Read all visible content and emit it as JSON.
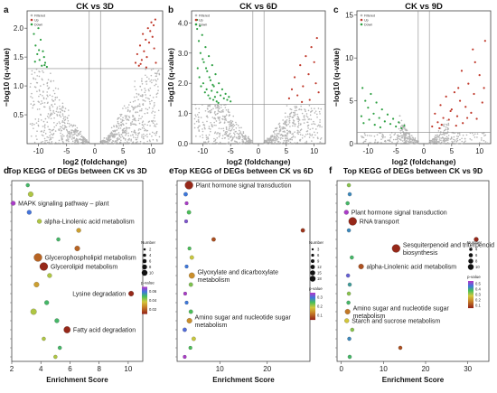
{
  "chart_data": [
    {
      "id": "a",
      "letter": "a",
      "type": "scatter",
      "title": "CK vs 3D",
      "xlabel": "log2  (foldchange)",
      "ylabel": "−log10  (q-value)",
      "xlim": [
        -12,
        12
      ],
      "ylim": [
        0,
        2.3
      ],
      "xticks": [
        -10,
        -5,
        0,
        5,
        10
      ],
      "yticks": [
        0.5,
        1.0,
        1.5,
        2.0
      ],
      "threshold_y": 1.3,
      "threshold_x": [
        -1,
        1
      ],
      "legend": [
        "Filtered",
        "Up",
        "Down"
      ],
      "up_points": [
        [
          7.2,
          1.4
        ],
        [
          7.5,
          1.55
        ],
        [
          7.8,
          1.35
        ],
        [
          8.0,
          1.7
        ],
        [
          8.3,
          1.45
        ],
        [
          8.5,
          1.9
        ],
        [
          8.7,
          1.6
        ],
        [
          9.0,
          1.8
        ],
        [
          9.2,
          1.5
        ],
        [
          9.4,
          2.0
        ],
        [
          9.6,
          1.75
        ],
        [
          9.8,
          1.95
        ],
        [
          10.0,
          2.1
        ],
        [
          10.2,
          1.85
        ],
        [
          10.4,
          2.05
        ],
        [
          10.5,
          1.65
        ],
        [
          10.7,
          2.15
        ],
        [
          10.8,
          1.4
        ],
        [
          9.1,
          1.32
        ],
        [
          8.1,
          1.38
        ]
      ],
      "down_points": [
        [
          -10.8,
          1.9
        ],
        [
          -10.5,
          1.7
        ],
        [
          -10.2,
          1.55
        ],
        [
          -10.0,
          2.0
        ],
        [
          -9.8,
          1.45
        ],
        [
          -9.6,
          1.8
        ],
        [
          -9.4,
          1.35
        ],
        [
          -9.2,
          1.6
        ],
        [
          -9.0,
          1.5
        ],
        [
          -8.8,
          1.4
        ],
        [
          -8.5,
          1.33
        ],
        [
          -10.6,
          1.42
        ],
        [
          -9.9,
          1.62
        ],
        [
          -8.9,
          1.36
        ]
      ]
    },
    {
      "id": "b",
      "letter": "b",
      "type": "scatter",
      "title": "CK vs 6D",
      "xlabel": "log2  (foldchange)",
      "ylabel": "−log10  (q-value)",
      "xlim": [
        -12,
        12
      ],
      "ylim": [
        0,
        4.4
      ],
      "xticks": [
        -10,
        -5,
        0,
        5,
        10
      ],
      "yticks": [
        0.0,
        1.0,
        2.0,
        3.0,
        4.0
      ],
      "threshold_y": 1.3,
      "threshold_x": [
        -1,
        1
      ],
      "legend": [
        "Filtered",
        "Up",
        "Down"
      ],
      "up_points": [
        [
          5.5,
          1.5
        ],
        [
          6.0,
          1.8
        ],
        [
          6.5,
          2.2
        ],
        [
          7.0,
          1.6
        ],
        [
          7.5,
          2.6
        ],
        [
          8.0,
          1.9
        ],
        [
          8.5,
          2.9
        ],
        [
          9.0,
          2.3
        ],
        [
          9.5,
          3.2
        ],
        [
          10.0,
          2.7
        ],
        [
          10.5,
          3.5
        ],
        [
          10.8,
          1.7
        ],
        [
          9.2,
          1.45
        ],
        [
          7.8,
          1.38
        ],
        [
          10.3,
          2.0
        ]
      ],
      "down_points": [
        [
          -11.0,
          3.8
        ],
        [
          -10.7,
          3.4
        ],
        [
          -10.4,
          3.0
        ],
        [
          -10.1,
          3.6
        ],
        [
          -9.8,
          2.7
        ],
        [
          -9.5,
          3.2
        ],
        [
          -9.2,
          2.4
        ],
        [
          -8.9,
          2.9
        ],
        [
          -8.6,
          2.1
        ],
        [
          -8.3,
          2.6
        ],
        [
          -8.0,
          1.9
        ],
        [
          -7.7,
          2.3
        ],
        [
          -7.4,
          1.7
        ],
        [
          -7.1,
          2.0
        ],
        [
          -6.8,
          1.6
        ],
        [
          -6.5,
          1.8
        ],
        [
          -6.2,
          1.5
        ],
        [
          -5.9,
          1.65
        ],
        [
          -5.6,
          1.45
        ],
        [
          -5.3,
          1.55
        ],
        [
          -5.0,
          1.4
        ],
        [
          -10.9,
          2.5
        ],
        [
          -10.6,
          2.2
        ],
        [
          -10.3,
          1.9
        ],
        [
          -9.9,
          2.0
        ],
        [
          -9.6,
          1.7
        ],
        [
          -9.3,
          1.8
        ],
        [
          -9.0,
          1.6
        ],
        [
          -8.7,
          1.5
        ],
        [
          -8.4,
          1.75
        ],
        [
          -8.1,
          1.45
        ],
        [
          -7.8,
          1.55
        ],
        [
          -7.5,
          1.4
        ],
        [
          -7.2,
          1.35
        ],
        [
          -11.0,
          4.1
        ],
        [
          -10.5,
          3.9
        ],
        [
          -10.0,
          2.8
        ],
        [
          -9.4,
          2.5
        ],
        [
          -8.8,
          2.2
        ],
        [
          -8.2,
          1.95
        ]
      ]
    },
    {
      "id": "c",
      "letter": "c",
      "type": "scatter",
      "title": "CK vs 9D",
      "xlabel": "log2  (foldchange)",
      "ylabel": "−log10  (q-value)",
      "xlim": [
        -12,
        12
      ],
      "ylim": [
        0,
        15.5
      ],
      "xticks": [
        -10,
        -5,
        0,
        5,
        10
      ],
      "yticks": [
        0,
        5,
        10,
        15
      ],
      "threshold_y": 1.3,
      "threshold_x": [
        -1,
        1
      ],
      "legend": [
        "Filtered",
        "Up",
        "Down"
      ],
      "up_points": [
        [
          1.5,
          2.0
        ],
        [
          2.0,
          3.5
        ],
        [
          2.5,
          2.5
        ],
        [
          3.0,
          4.5
        ],
        [
          3.5,
          3.0
        ],
        [
          4.0,
          5.5
        ],
        [
          4.5,
          2.8
        ],
        [
          5.0,
          4.0
        ],
        [
          5.5,
          6.0
        ],
        [
          6.0,
          3.2
        ],
        [
          6.5,
          5.0
        ],
        [
          7.0,
          2.4
        ],
        [
          7.5,
          4.3
        ],
        [
          8.0,
          7.0
        ],
        [
          8.5,
          3.6
        ],
        [
          9.0,
          5.8
        ],
        [
          9.5,
          2.9
        ],
        [
          10.0,
          8.0
        ],
        [
          10.5,
          4.8
        ],
        [
          11.0,
          12.0
        ],
        [
          3.2,
          2.2
        ],
        [
          4.8,
          3.8
        ],
        [
          6.2,
          6.5
        ],
        [
          7.8,
          3.0
        ],
        [
          9.2,
          9.5
        ],
        [
          10.8,
          6.5
        ],
        [
          2.8,
          1.8
        ],
        [
          5.8,
          2.1
        ],
        [
          8.8,
          11.0
        ],
        [
          6.8,
          8.5
        ]
      ],
      "down_points": [
        [
          -11.0,
          6.5
        ],
        [
          -10.5,
          5.0
        ],
        [
          -10.0,
          4.2
        ],
        [
          -9.5,
          5.8
        ],
        [
          -9.0,
          3.5
        ],
        [
          -8.5,
          4.8
        ],
        [
          -8.0,
          3.0
        ],
        [
          -7.5,
          4.0
        ],
        [
          -7.0,
          2.6
        ],
        [
          -6.5,
          3.4
        ],
        [
          -6.0,
          2.3
        ],
        [
          -5.5,
          2.9
        ],
        [
          -5.0,
          2.0
        ],
        [
          -4.5,
          2.5
        ],
        [
          -4.0,
          1.8
        ],
        [
          -3.5,
          2.1
        ],
        [
          -11.2,
          3.2
        ],
        [
          -10.8,
          2.4
        ],
        [
          -9.8,
          2.8
        ],
        [
          -8.8,
          2.2
        ],
        [
          -7.8,
          1.9
        ]
      ]
    },
    {
      "id": "d",
      "letter": "d",
      "type": "scatter",
      "title": "Top KEGG of DEGs between CK vs 3D",
      "xlabel": "Enrichment Score",
      "ylabel": "",
      "xlim": [
        2,
        11
      ],
      "xticks": [
        2,
        4,
        6,
        8,
        10
      ],
      "n_rows": 20,
      "size_legend_title": "Number",
      "size_legend": [
        2,
        4,
        6,
        8,
        10
      ],
      "color_legend_title": "p-value",
      "color_ticks": [
        "0.06",
        "0.04",
        "0.02"
      ],
      "points": [
        {
          "x": 3.1,
          "row": 0,
          "size": 2,
          "p": 0.05,
          "label": ""
        },
        {
          "x": 3.3,
          "row": 1,
          "size": 4,
          "p": 0.04,
          "label": ""
        },
        {
          "x": 2.1,
          "row": 2,
          "size": 3,
          "p": 0.07,
          "label": "MAPK signaling pathway – plant"
        },
        {
          "x": 3.2,
          "row": 3,
          "size": 3,
          "p": 0.06,
          "label": ""
        },
        {
          "x": 3.9,
          "row": 4,
          "size": 3,
          "p": 0.04,
          "label": "alpha-Linolenic acid metabolism"
        },
        {
          "x": 6.6,
          "row": 5,
          "size": 3,
          "p": 0.03,
          "label": ""
        },
        {
          "x": 5.2,
          "row": 6,
          "size": 2,
          "p": 0.05,
          "label": ""
        },
        {
          "x": 6.5,
          "row": 7,
          "size": 4,
          "p": 0.02,
          "label": ""
        },
        {
          "x": 3.8,
          "row": 8,
          "size": 8,
          "p": 0.02,
          "label": "Glycerophospholipid metabolism"
        },
        {
          "x": 4.2,
          "row": 9,
          "size": 8,
          "p": 0.01,
          "label": "Glycerolipid metabolism"
        },
        {
          "x": 4.6,
          "row": 10,
          "size": 3,
          "p": 0.04,
          "label": ""
        },
        {
          "x": 3.7,
          "row": 11,
          "size": 4,
          "p": 0.03,
          "label": ""
        },
        {
          "x": 10.2,
          "row": 12,
          "size": 4,
          "p": 0.01,
          "label": "Lysine degradation"
        },
        {
          "x": 4.4,
          "row": 13,
          "size": 3,
          "p": 0.05,
          "label": ""
        },
        {
          "x": 3.5,
          "row": 14,
          "size": 5,
          "p": 0.04,
          "label": ""
        },
        {
          "x": 5.1,
          "row": 15,
          "size": 3,
          "p": 0.05,
          "label": ""
        },
        {
          "x": 5.8,
          "row": 16,
          "size": 6,
          "p": 0.01,
          "label": "Fatty acid degradation"
        },
        {
          "x": 4.2,
          "row": 17,
          "size": 2,
          "p": 0.04,
          "label": ""
        },
        {
          "x": 5.3,
          "row": 18,
          "size": 2,
          "p": 0.05,
          "label": ""
        },
        {
          "x": 5.0,
          "row": 19,
          "size": 2,
          "p": 0.04,
          "label": ""
        }
      ]
    },
    {
      "id": "e",
      "letter": "e",
      "type": "scatter",
      "title": "Top KEGG of DEGs between CK vs 6D",
      "xlabel": "Enrichment Score",
      "ylabel": "",
      "xlim": [
        1,
        29
      ],
      "xticks": [
        10,
        20
      ],
      "n_rows": 20,
      "size_legend_title": "Number",
      "size_legend": [
        3,
        6,
        9,
        12,
        15,
        18
      ],
      "color_legend_title": "p-value",
      "color_ticks": [
        "0.3",
        "0.2",
        "0.1"
      ],
      "points": [
        {
          "x": 3.5,
          "row": 0,
          "size": 10,
          "p": 0.02,
          "label": "Plant hormone signal transduction"
        },
        {
          "x": 2.8,
          "row": 1,
          "size": 3,
          "p": 0.25,
          "label": ""
        },
        {
          "x": 3.0,
          "row": 2,
          "size": 2,
          "p": 0.3,
          "label": ""
        },
        {
          "x": 3.5,
          "row": 3,
          "size": 3,
          "p": 0.2,
          "label": ""
        },
        {
          "x": 2.9,
          "row": 4,
          "size": 2,
          "p": 0.28,
          "label": ""
        },
        {
          "x": 27.5,
          "row": 5,
          "size": 3,
          "p": 0.03,
          "label": ""
        },
        {
          "x": 8.7,
          "row": 6,
          "size": 3,
          "p": 0.05,
          "label": ""
        },
        {
          "x": 3.6,
          "row": 7,
          "size": 2,
          "p": 0.2,
          "label": ""
        },
        {
          "x": 4.1,
          "row": 8,
          "size": 3,
          "p": 0.15,
          "label": ""
        },
        {
          "x": 3.0,
          "row": 9,
          "size": 2,
          "p": 0.25,
          "label": ""
        },
        {
          "x": 4.1,
          "row": 10,
          "size": 6,
          "p": 0.1,
          "label": "Glyoxylate and dicarboxylate metabolism"
        },
        {
          "x": 3.9,
          "row": 11,
          "size": 3,
          "p": 0.18,
          "label": ""
        },
        {
          "x": 2.7,
          "row": 12,
          "size": 2,
          "p": 0.3,
          "label": ""
        },
        {
          "x": 3.0,
          "row": 13,
          "size": 2,
          "p": 0.25,
          "label": ""
        },
        {
          "x": 3.9,
          "row": 14,
          "size": 3,
          "p": 0.2,
          "label": ""
        },
        {
          "x": 3.6,
          "row": 15,
          "size": 5,
          "p": 0.1,
          "label": "Amino sugar and nucleotide sugar metabolism"
        },
        {
          "x": 2.6,
          "row": 16,
          "size": 3,
          "p": 0.26,
          "label": ""
        },
        {
          "x": 4.5,
          "row": 17,
          "size": 3,
          "p": 0.15,
          "label": ""
        },
        {
          "x": 3.8,
          "row": 18,
          "size": 2,
          "p": 0.2,
          "label": ""
        },
        {
          "x": 2.6,
          "row": 19,
          "size": 2,
          "p": 0.3,
          "label": ""
        }
      ]
    },
    {
      "id": "f",
      "letter": "f",
      "type": "scatter",
      "title": "Top KEGG of DEGs between CK vs 9D",
      "xlabel": "Enrichment Score",
      "ylabel": "",
      "xlim": [
        -1,
        35
      ],
      "xticks": [
        0,
        10,
        20,
        30
      ],
      "n_rows": 20,
      "size_legend_title": "Number",
      "size_legend": [
        4,
        6,
        8,
        10
      ],
      "color_legend_title": "p-value",
      "color_ticks": [
        "0.5",
        "0.4",
        "0.3",
        "0.2",
        "0.1"
      ],
      "points": [
        {
          "x": 1.8,
          "row": 0,
          "size": 2,
          "p": 0.3,
          "label": ""
        },
        {
          "x": 2.0,
          "row": 1,
          "size": 2,
          "p": 0.4,
          "label": ""
        },
        {
          "x": 1.5,
          "row": 2,
          "size": 2,
          "p": 0.35,
          "label": ""
        },
        {
          "x": 1.2,
          "row": 3,
          "size": 3,
          "p": 0.5,
          "label": "Plant hormone signal transduction"
        },
        {
          "x": 2.7,
          "row": 4,
          "size": 8,
          "p": 0.05,
          "label": "RNA transport"
        },
        {
          "x": 1.8,
          "row": 5,
          "size": 2,
          "p": 0.4,
          "label": ""
        },
        {
          "x": 32.0,
          "row": 6,
          "size": 3,
          "p": 0.05,
          "label": ""
        },
        {
          "x": 13.0,
          "row": 7,
          "size": 8,
          "p": 0.05,
          "label": "Sesquiterpenoid and triterpenoid biosynthesis"
        },
        {
          "x": 2.5,
          "row": 8,
          "size": 2,
          "p": 0.35,
          "label": ""
        },
        {
          "x": 4.7,
          "row": 9,
          "size": 4,
          "p": 0.1,
          "label": "alpha-Linolenic acid metabolism"
        },
        {
          "x": 1.6,
          "row": 10,
          "size": 2,
          "p": 0.45,
          "label": ""
        },
        {
          "x": 2.0,
          "row": 11,
          "size": 2,
          "p": 0.38,
          "label": ""
        },
        {
          "x": 1.8,
          "row": 12,
          "size": 2,
          "p": 0.3,
          "label": ""
        },
        {
          "x": 1.7,
          "row": 13,
          "size": 2,
          "p": 0.35,
          "label": ""
        },
        {
          "x": 1.5,
          "row": 14,
          "size": 4,
          "p": 0.15,
          "label": "Amino sugar and nucleotide sugar metabolism"
        },
        {
          "x": 1.3,
          "row": 15,
          "size": 3,
          "p": 0.25,
          "label": "Starch and sucrose metabolism"
        },
        {
          "x": 2.6,
          "row": 16,
          "size": 2,
          "p": 0.3,
          "label": ""
        },
        {
          "x": 1.9,
          "row": 17,
          "size": 2,
          "p": 0.4,
          "label": ""
        },
        {
          "x": 14.0,
          "row": 18,
          "size": 2,
          "p": 0.1,
          "label": ""
        },
        {
          "x": 2.0,
          "row": 19,
          "size": 2,
          "p": 0.35,
          "label": ""
        }
      ]
    }
  ]
}
